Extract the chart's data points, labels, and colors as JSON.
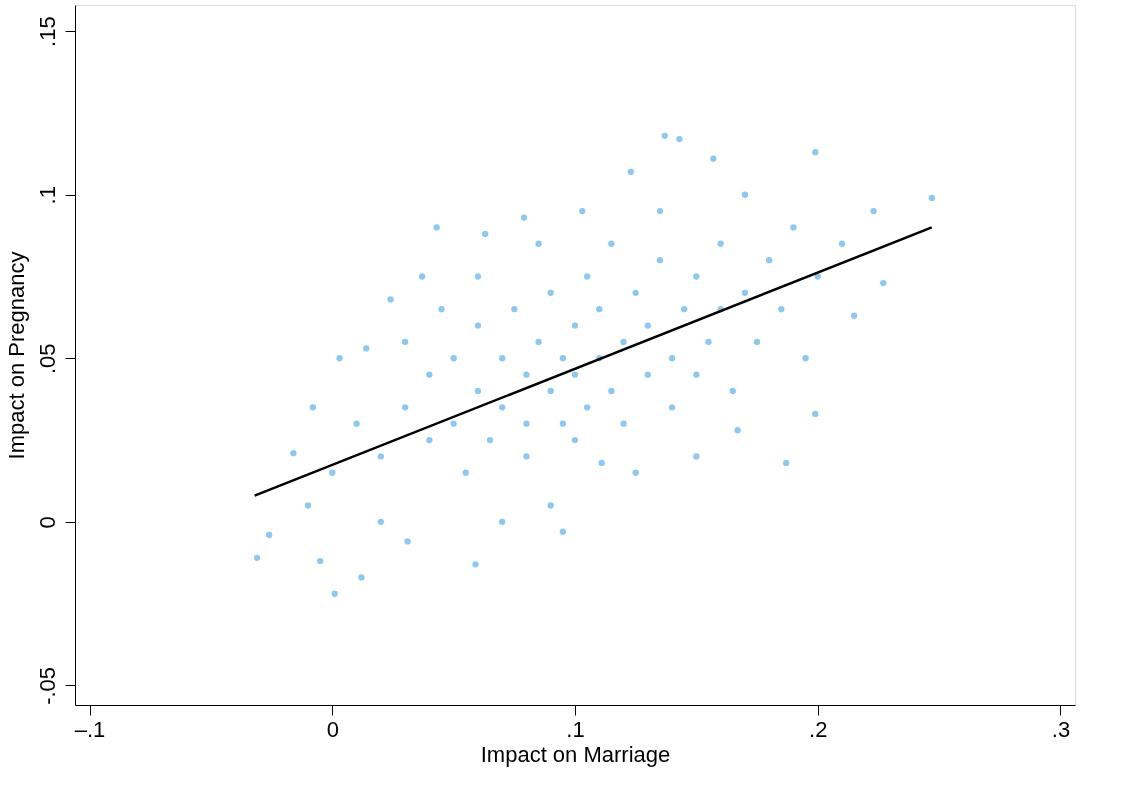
{
  "chart_data": {
    "type": "scatter",
    "xlabel": "Impact on Marriage",
    "ylabel": "Impact on Pregnancy",
    "xlim": [
      -0.106,
      0.306
    ],
    "ylim": [
      -0.056,
      0.158
    ],
    "xticks": [
      {
        "value": -0.1,
        "label": "–.1"
      },
      0,
      {
        "value": 0.1,
        "label": ".1"
      },
      {
        "value": 0.2,
        "label": ".2"
      },
      {
        "value": 0.3,
        "label": ".3"
      }
    ],
    "yticks": [
      {
        "value": -0.05,
        "label": "-.05"
      },
      0,
      {
        "value": 0.05,
        "label": ".05"
      },
      {
        "value": 0.1,
        "label": ".1"
      },
      {
        "value": 0.15,
        "label": ".15"
      }
    ],
    "grid": false,
    "series": [
      {
        "marker": "circle",
        "color": "#8fc8ef",
        "x": [
          -0.031,
          -0.026,
          0.001,
          0.012,
          -0.005,
          -0.008,
          0.003,
          -0.016,
          0.137,
          0.143,
          0.199,
          0.157,
          0.247,
          0.223,
          0.227,
          0.215,
          0.199,
          0.187,
          0.167,
          0.111,
          0.095,
          0.059,
          0.031,
          0.043,
          0.063,
          0.079,
          0.103,
          0.123,
          0.037,
          0.024,
          0.014,
          0.02,
          0.03,
          0.04,
          0.04,
          0.05,
          0.05,
          0.055,
          0.06,
          0.06,
          0.065,
          0.07,
          0.07,
          0.075,
          0.08,
          0.08,
          0.08,
          0.085,
          0.09,
          0.09,
          0.095,
          0.095,
          0.1,
          0.1,
          0.1,
          0.105,
          0.105,
          0.11,
          0.11,
          0.115,
          0.12,
          0.12,
          0.125,
          0.13,
          0.13,
          0.135,
          0.14,
          0.14,
          0.145,
          0.15,
          0.15,
          0.155,
          0.16,
          0.16,
          0.165,
          0.17,
          0.175,
          0.18,
          0.185,
          0.19,
          0.195,
          0.2,
          0.21,
          0.03,
          0.01,
          0.0,
          -0.01,
          0.02,
          0.045,
          0.06,
          0.085,
          0.115,
          0.135,
          0.17,
          0.15,
          0.125,
          0.09,
          0.07
        ],
        "values": [
          -0.011,
          -0.004,
          -0.022,
          -0.017,
          -0.012,
          0.035,
          0.05,
          0.021,
          0.118,
          0.117,
          0.113,
          0.111,
          0.099,
          0.095,
          0.073,
          0.063,
          0.033,
          0.018,
          0.028,
          0.018,
          -0.003,
          -0.013,
          -0.006,
          0.09,
          0.088,
          0.093,
          0.095,
          0.107,
          0.075,
          0.068,
          0.053,
          0.02,
          0.035,
          0.025,
          0.045,
          0.03,
          0.05,
          0.015,
          0.04,
          0.06,
          0.025,
          0.035,
          0.05,
          0.065,
          0.03,
          0.045,
          0.02,
          0.055,
          0.04,
          0.07,
          0.03,
          0.05,
          0.045,
          0.06,
          0.025,
          0.035,
          0.075,
          0.05,
          0.065,
          0.04,
          0.055,
          0.03,
          0.07,
          0.045,
          0.06,
          0.08,
          0.05,
          0.035,
          0.065,
          0.075,
          0.045,
          0.055,
          0.085,
          0.065,
          0.04,
          0.07,
          0.055,
          0.08,
          0.065,
          0.09,
          0.05,
          0.075,
          0.085,
          0.055,
          0.03,
          0.015,
          0.005,
          0.0,
          0.065,
          0.075,
          0.085,
          0.085,
          0.095,
          0.1,
          0.02,
          0.015,
          0.005,
          0.0
        ]
      },
      {
        "type": "line",
        "color": "#000000",
        "x": [
          -0.032,
          0.247
        ],
        "values": [
          0.008,
          0.09
        ],
        "line_style": "solid"
      }
    ]
  }
}
